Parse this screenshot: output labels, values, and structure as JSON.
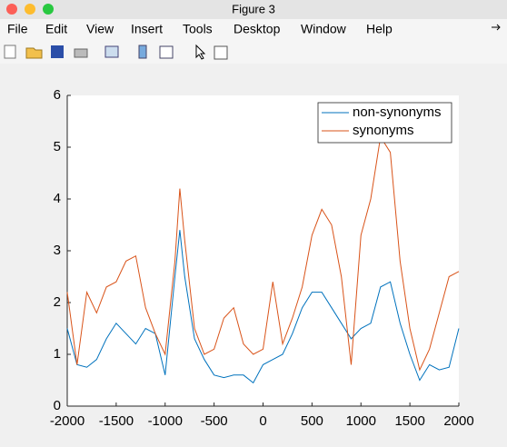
{
  "window": {
    "title": "Figure 3",
    "menu": [
      "File",
      "Edit",
      "View",
      "Insert",
      "Tools",
      "Desktop",
      "Window",
      "Help"
    ]
  },
  "chart_data": {
    "type": "line",
    "x": [
      -2000,
      -1900,
      -1800,
      -1700,
      -1600,
      -1500,
      -1400,
      -1300,
      -1200,
      -1100,
      -1000,
      -900,
      -850,
      -800,
      -700,
      -600,
      -500,
      -400,
      -300,
      -200,
      -100,
      0,
      100,
      200,
      300,
      400,
      500,
      600,
      700,
      800,
      900,
      1000,
      1100,
      1200,
      1300,
      1400,
      1500,
      1600,
      1700,
      1800,
      1900,
      2000
    ],
    "series": [
      {
        "name": "non-synonyms",
        "color": "#0072bd",
        "values": [
          1.5,
          0.8,
          0.75,
          0.9,
          1.3,
          1.6,
          1.4,
          1.2,
          1.5,
          1.4,
          0.6,
          2.5,
          3.4,
          2.5,
          1.3,
          0.9,
          0.6,
          0.55,
          0.6,
          0.6,
          0.45,
          0.8,
          0.9,
          1.0,
          1.4,
          1.9,
          2.2,
          2.2,
          1.9,
          1.6,
          1.3,
          1.5,
          1.6,
          2.3,
          2.4,
          1.6,
          1.0,
          0.5,
          0.8,
          0.7,
          0.75,
          1.5
        ]
      },
      {
        "name": "synonyms",
        "color": "#d95319",
        "values": [
          2.2,
          0.8,
          2.2,
          1.8,
          2.3,
          2.4,
          2.8,
          2.9,
          1.9,
          1.4,
          1.0,
          2.8,
          4.2,
          3.2,
          1.5,
          1.0,
          1.1,
          1.7,
          1.9,
          1.2,
          1.0,
          1.1,
          2.4,
          1.2,
          1.7,
          2.3,
          3.3,
          3.8,
          3.5,
          2.5,
          0.8,
          3.3,
          4.0,
          5.2,
          4.9,
          2.8,
          1.5,
          0.7,
          1.1,
          1.8,
          2.5,
          2.6
        ]
      }
    ],
    "xlim": [
      -2000,
      2000
    ],
    "ylim": [
      0,
      6
    ],
    "xticks": [
      -2000,
      -1500,
      -1000,
      -500,
      0,
      500,
      1000,
      1500,
      2000
    ],
    "yticks": [
      0,
      1,
      2,
      3,
      4,
      5,
      6
    ],
    "legend": "upper right"
  }
}
